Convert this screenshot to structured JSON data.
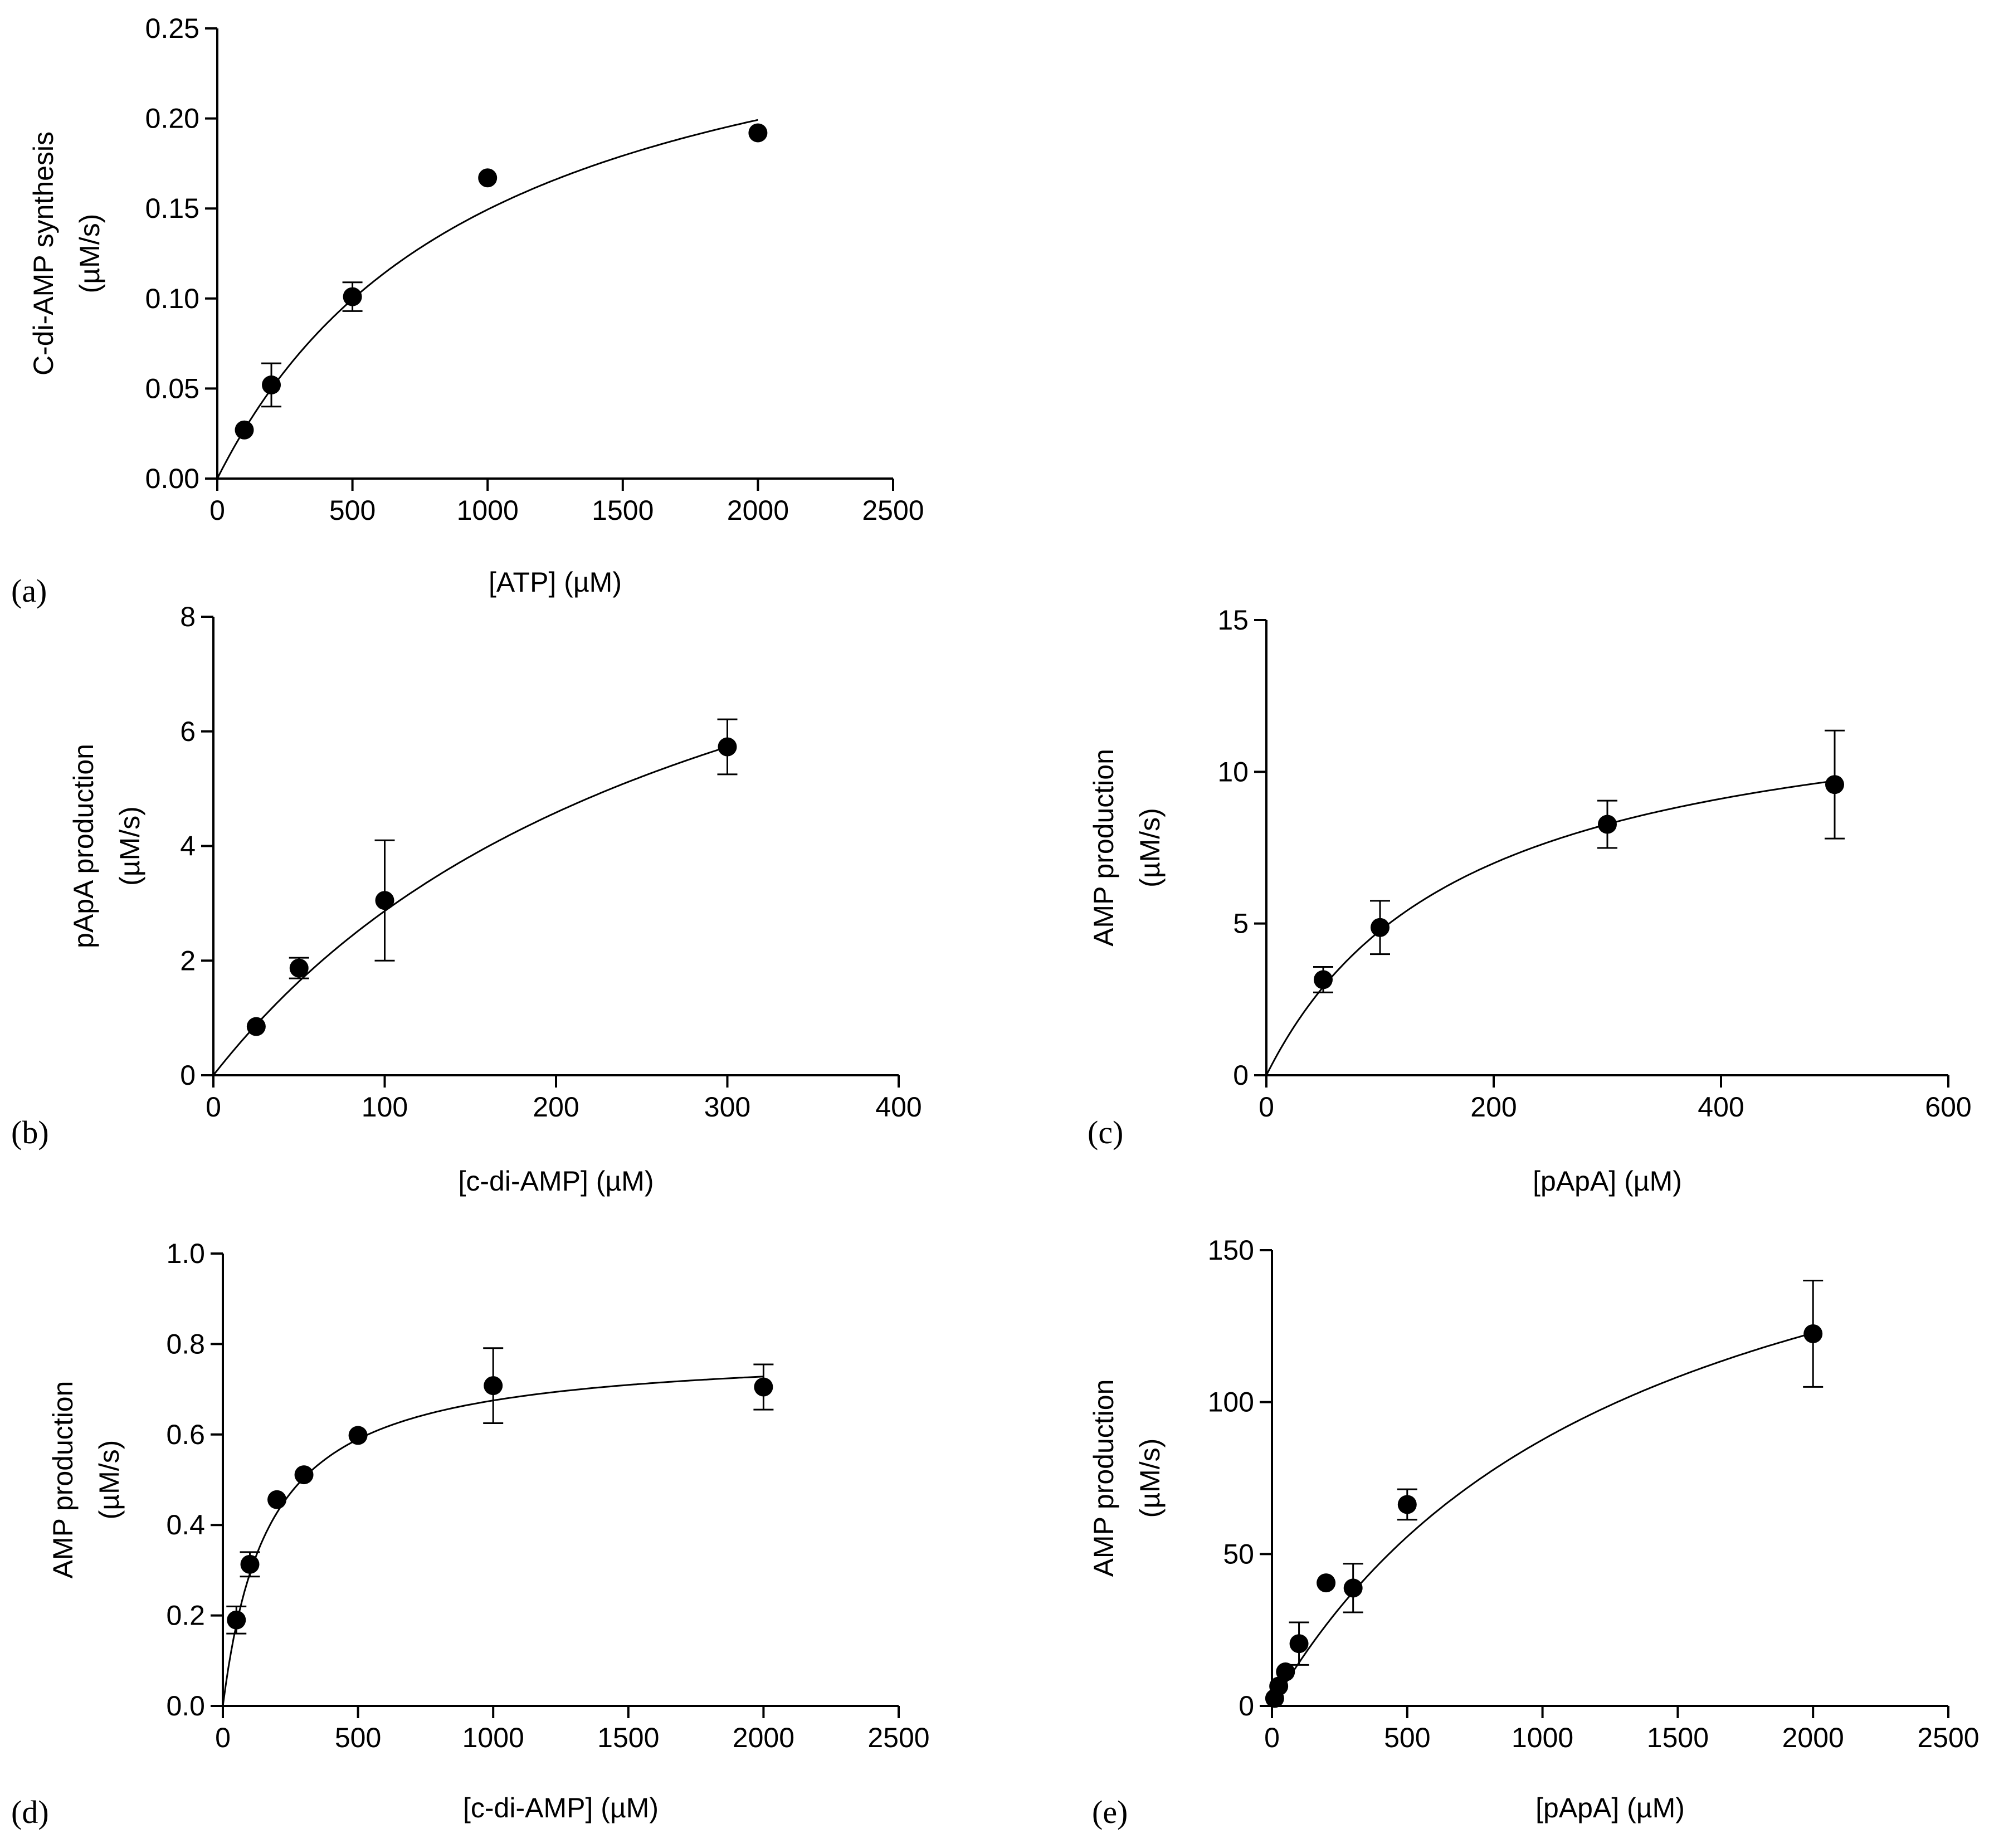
{
  "figure": {
    "description_label": "Five Michaelis-Menten kinetic plots"
  },
  "chart_data": [
    {
      "id": "a",
      "panel_label": "(a)",
      "type": "scatter",
      "fit": "michaelis-menten",
      "fit_params": {
        "vmax": 0.2988,
        "km": 1000
      },
      "xlabel": "[ATP] (µM)",
      "ylabel_lines": [
        "C-di-AMP synthesis",
        "(µM/s)"
      ],
      "xlim": [
        0,
        2500
      ],
      "ylim": [
        0,
        0.25
      ],
      "xticks": [
        0,
        500,
        1000,
        1500,
        2000,
        2500
      ],
      "xtick_labels": [
        "0",
        "500",
        "1000",
        "1500",
        "2000",
        "2500"
      ],
      "yticks": [
        0,
        0.05,
        0.1,
        0.15,
        0.2,
        0.25
      ],
      "ytick_labels": [
        "0.00",
        "0.05",
        "0.10",
        "0.15",
        "0.20",
        "0.25"
      ],
      "points": [
        {
          "x": 100,
          "y": 0.027,
          "err": 0
        },
        {
          "x": 200,
          "y": 0.052,
          "err": 0.012
        },
        {
          "x": 500,
          "y": 0.101,
          "err": 0.008
        },
        {
          "x": 1000,
          "y": 0.167,
          "err": 0
        },
        {
          "x": 2000,
          "y": 0.192,
          "err": 0
        }
      ]
    },
    {
      "id": "b",
      "panel_label": "(b)",
      "type": "scatter",
      "fit": "michaelis-menten",
      "fit_params": {
        "vmax": 11.46,
        "km": 300
      },
      "xlabel": "[c-di-AMP] (µM)",
      "ylabel_lines": [
        "pApA production",
        "(µM/s)"
      ],
      "xlim": [
        0,
        400
      ],
      "ylim": [
        0,
        8
      ],
      "xticks": [
        0,
        100,
        200,
        300,
        400
      ],
      "xtick_labels": [
        "0",
        "100",
        "200",
        "300",
        "400"
      ],
      "yticks": [
        0,
        2,
        4,
        6,
        8
      ],
      "ytick_labels": [
        "0",
        "2",
        "4",
        "6",
        "8"
      ],
      "points": [
        {
          "x": 25,
          "y": 0.85,
          "err": 0
        },
        {
          "x": 50,
          "y": 1.87,
          "err": 0.18
        },
        {
          "x": 100,
          "y": 3.05,
          "err": 1.05
        },
        {
          "x": 300,
          "y": 5.73,
          "err": 0.48
        }
      ]
    },
    {
      "id": "c",
      "panel_label": "(c)",
      "type": "scatter",
      "fit": "michaelis-menten",
      "fit_params": {
        "vmax": 13.1,
        "km": 175
      },
      "xlabel": "[pApA] (µM)",
      "ylabel_lines": [
        "AMP production",
        "(µM/s)"
      ],
      "xlim": [
        0,
        600
      ],
      "ylim": [
        0,
        15
      ],
      "xticks": [
        0,
        200,
        400,
        600
      ],
      "xtick_labels": [
        "0",
        "200",
        "400",
        "600"
      ],
      "yticks": [
        0,
        5,
        10,
        15
      ],
      "ytick_labels": [
        "0",
        "5",
        "10",
        "15"
      ],
      "points": [
        {
          "x": 50,
          "y": 3.15,
          "err": 0.42
        },
        {
          "x": 100,
          "y": 4.87,
          "err": 0.88
        },
        {
          "x": 300,
          "y": 8.27,
          "err": 0.78
        },
        {
          "x": 500,
          "y": 9.58,
          "err": 1.78
        }
      ]
    },
    {
      "id": "d",
      "panel_label": "(d)",
      "type": "scatter",
      "fit": "michaelis-menten",
      "fit_params": {
        "vmax": 0.79,
        "km": 170
      },
      "xlabel": "[c-di-AMP] (µM)",
      "ylabel_lines": [
        "AMP production",
        "(µM/s)"
      ],
      "xlim": [
        0,
        2500
      ],
      "ylim": [
        0,
        1.0
      ],
      "xticks": [
        0,
        500,
        1000,
        1500,
        2000,
        2500
      ],
      "xtick_labels": [
        "0",
        "500",
        "1000",
        "1500",
        "2000",
        "2500"
      ],
      "yticks": [
        0,
        0.2,
        0.4,
        0.6,
        0.8,
        1.0
      ],
      "ytick_labels": [
        "0.0",
        "0.2",
        "0.4",
        "0.6",
        "0.8",
        "1.0"
      ],
      "points": [
        {
          "x": 50,
          "y": 0.19,
          "err": 0.03
        },
        {
          "x": 100,
          "y": 0.313,
          "err": 0.027
        },
        {
          "x": 200,
          "y": 0.456,
          "err": 0
        },
        {
          "x": 300,
          "y": 0.511,
          "err": 0
        },
        {
          "x": 500,
          "y": 0.598,
          "err": 0
        },
        {
          "x": 1000,
          "y": 0.708,
          "err": 0.083
        },
        {
          "x": 2000,
          "y": 0.705,
          "err": 0.05
        }
      ]
    },
    {
      "id": "e",
      "panel_label": "(e)",
      "type": "scatter",
      "fit": "michaelis-menten",
      "fit_params": {
        "vmax": 205,
        "km": 1340
      },
      "xlabel": "[pApA] (µM)",
      "ylabel_lines": [
        "AMP production",
        "(µM/s)"
      ],
      "xlim": [
        0,
        2500
      ],
      "ylim": [
        0,
        150
      ],
      "xticks": [
        0,
        500,
        1000,
        1500,
        2000,
        2500
      ],
      "xtick_labels": [
        "0",
        "500",
        "1000",
        "1500",
        "2000",
        "2500"
      ],
      "yticks": [
        0,
        50,
        100,
        150
      ],
      "ytick_labels": [
        "0",
        "50",
        "100",
        "150"
      ],
      "points": [
        {
          "x": 10,
          "y": 2.5,
          "err": 0
        },
        {
          "x": 25,
          "y": 6.5,
          "err": 0
        },
        {
          "x": 50,
          "y": 11.2,
          "err": 0
        },
        {
          "x": 100,
          "y": 20.5,
          "err": 7.0
        },
        {
          "x": 200,
          "y": 40.5,
          "err": 0
        },
        {
          "x": 300,
          "y": 38.8,
          "err": 8.0
        },
        {
          "x": 500,
          "y": 66.3,
          "err": 5.0
        },
        {
          "x": 2000,
          "y": 122.5,
          "err": 17.5
        }
      ]
    }
  ]
}
